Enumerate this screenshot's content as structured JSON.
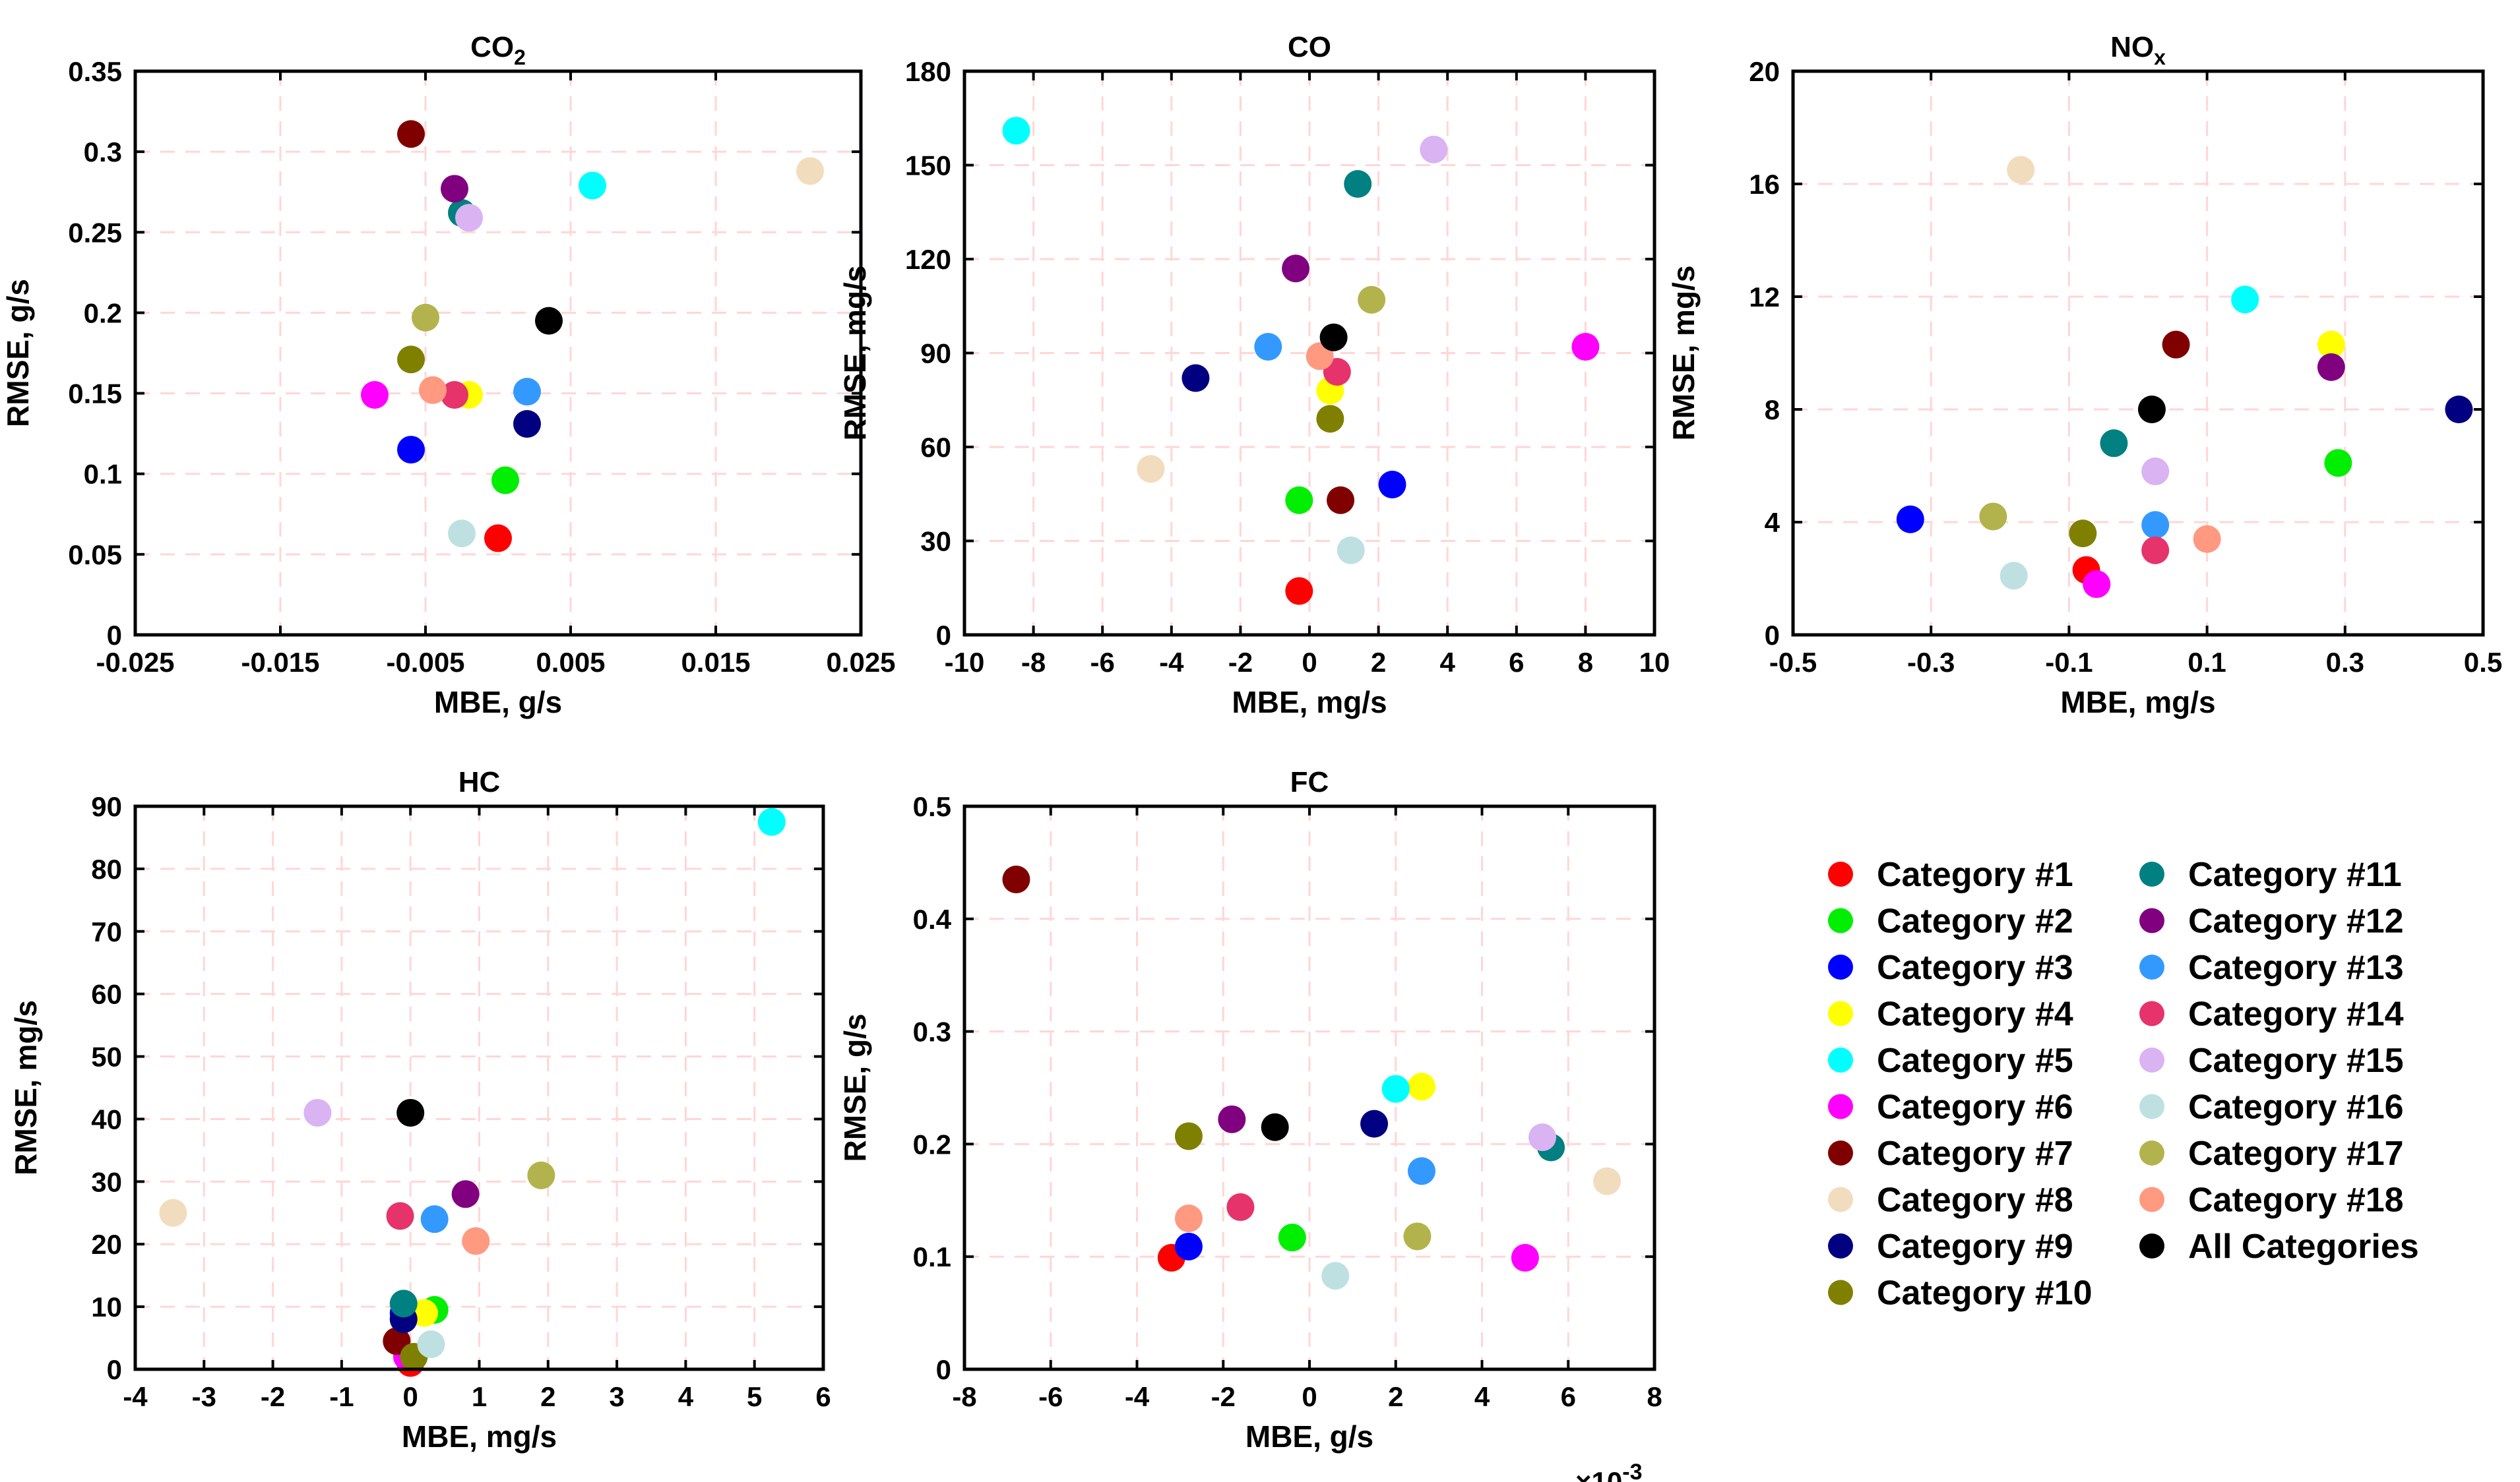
{
  "chart_data": [
    {
      "id": "co2",
      "type": "scatter",
      "title": "CO",
      "title_sub": "2",
      "xlabel": "MBE, g/s",
      "ylabel": "RMSE, g/s",
      "xlim": [
        -0.025,
        0.025
      ],
      "ylim": [
        0,
        0.35
      ],
      "xticks": [
        -0.025,
        -0.015,
        -0.005,
        0.005,
        0.015,
        0.025
      ],
      "xtick_labels": [
        "-0.025",
        "-0.015",
        "-0.005",
        "0.005",
        "0.015",
        "0.025"
      ],
      "yticks": [
        0,
        0.05,
        0.1,
        0.15,
        0.2,
        0.25,
        0.3,
        0.35
      ],
      "ytick_labels": [
        "0",
        "0.05",
        "0.1",
        "0.15",
        "0.2",
        "0.25",
        "0.3",
        "0.35"
      ],
      "points": [
        {
          "category": "Category #1",
          "x": 0.0,
          "y": 0.06
        },
        {
          "category": "Category #2",
          "x": 0.0005,
          "y": 0.096
        },
        {
          "category": "Category #3",
          "x": -0.006,
          "y": 0.115
        },
        {
          "category": "Category #4",
          "x": -0.002,
          "y": 0.149
        },
        {
          "category": "Category #5",
          "x": 0.0065,
          "y": 0.279
        },
        {
          "category": "Category #6",
          "x": -0.0085,
          "y": 0.149
        },
        {
          "category": "Category #7",
          "x": -0.006,
          "y": 0.311
        },
        {
          "category": "Category #8",
          "x": 0.0215,
          "y": 0.288
        },
        {
          "category": "Category #9",
          "x": 0.002,
          "y": 0.131
        },
        {
          "category": "Category #10",
          "x": -0.006,
          "y": 0.171
        },
        {
          "category": "Category #11",
          "x": -0.0025,
          "y": 0.262
        },
        {
          "category": "Category #12",
          "x": -0.003,
          "y": 0.277
        },
        {
          "category": "Category #13",
          "x": 0.002,
          "y": 0.151
        },
        {
          "category": "Category #14",
          "x": -0.003,
          "y": 0.149
        },
        {
          "category": "Category #15",
          "x": -0.002,
          "y": 0.259
        },
        {
          "category": "Category #16",
          "x": -0.0025,
          "y": 0.063
        },
        {
          "category": "Category #17",
          "x": -0.005,
          "y": 0.197
        },
        {
          "category": "Category #18",
          "x": -0.0045,
          "y": 0.152
        },
        {
          "category": "All Categories",
          "x": 0.0035,
          "y": 0.195
        }
      ]
    },
    {
      "id": "co",
      "type": "scatter",
      "title": "CO",
      "title_sub": "",
      "xlabel": "MBE, mg/s",
      "ylabel": "RMSE, mg/s",
      "xlim": [
        -10,
        10
      ],
      "ylim": [
        0,
        180
      ],
      "xticks": [
        -10,
        -8,
        -6,
        -4,
        -2,
        0,
        2,
        4,
        6,
        8,
        10
      ],
      "xtick_labels": [
        "-10",
        "-8",
        "-6",
        "-4",
        "-2",
        "0",
        "2",
        "4",
        "6",
        "8",
        "10"
      ],
      "yticks": [
        0,
        30,
        60,
        90,
        120,
        150,
        180
      ],
      "ytick_labels": [
        "0",
        "30",
        "60",
        "90",
        "120",
        "150",
        "180"
      ],
      "points": [
        {
          "category": "Category #1",
          "x": -0.3,
          "y": 14
        },
        {
          "category": "Category #2",
          "x": -0.3,
          "y": 43
        },
        {
          "category": "Category #3",
          "x": 2.4,
          "y": 48
        },
        {
          "category": "Category #4",
          "x": 0.6,
          "y": 78
        },
        {
          "category": "Category #5",
          "x": -8.5,
          "y": 161
        },
        {
          "category": "Category #6",
          "x": 8.0,
          "y": 92
        },
        {
          "category": "Category #7",
          "x": 0.9,
          "y": 43
        },
        {
          "category": "Category #8",
          "x": -4.6,
          "y": 53
        },
        {
          "category": "Category #9",
          "x": -3.3,
          "y": 82
        },
        {
          "category": "Category #10",
          "x": 0.6,
          "y": 69
        },
        {
          "category": "Category #11",
          "x": 1.4,
          "y": 144
        },
        {
          "category": "Category #12",
          "x": -0.4,
          "y": 117
        },
        {
          "category": "Category #13",
          "x": -1.2,
          "y": 92
        },
        {
          "category": "Category #14",
          "x": 0.8,
          "y": 84
        },
        {
          "category": "Category #15",
          "x": 3.6,
          "y": 155
        },
        {
          "category": "Category #16",
          "x": 1.2,
          "y": 27
        },
        {
          "category": "Category #17",
          "x": 1.8,
          "y": 107
        },
        {
          "category": "Category #18",
          "x": 0.3,
          "y": 89
        },
        {
          "category": "All Categories",
          "x": 0.7,
          "y": 95
        }
      ]
    },
    {
      "id": "nox",
      "type": "scatter",
      "title": "NO",
      "title_sub": "x",
      "xlabel": "MBE, mg/s",
      "ylabel": "RMSE, mg/s",
      "xlim": [
        -0.5,
        0.5
      ],
      "ylim": [
        0,
        20
      ],
      "xticks": [
        -0.5,
        -0.3,
        -0.1,
        0.1,
        0.3,
        0.5
      ],
      "xtick_labels": [
        "-0.5",
        "-0.3",
        "-0.1",
        "0.1",
        "0.3",
        "0.5"
      ],
      "yticks": [
        0,
        4,
        8,
        12,
        16,
        20
      ],
      "ytick_labels": [
        "0",
        "4",
        "8",
        "12",
        "16",
        "20"
      ],
      "points": [
        {
          "category": "Category #1",
          "x": -0.075,
          "y": 2.3
        },
        {
          "category": "Category #2",
          "x": 0.29,
          "y": 6.1
        },
        {
          "category": "Category #3",
          "x": -0.33,
          "y": 4.1
        },
        {
          "category": "Category #4",
          "x": 0.28,
          "y": 10.3
        },
        {
          "category": "Category #5",
          "x": 0.155,
          "y": 11.9
        },
        {
          "category": "Category #6",
          "x": -0.06,
          "y": 1.8
        },
        {
          "category": "Category #7",
          "x": 0.055,
          "y": 10.3
        },
        {
          "category": "Category #8",
          "x": -0.17,
          "y": 16.5
        },
        {
          "category": "Category #9",
          "x": 0.465,
          "y": 8.0
        },
        {
          "category": "Category #10",
          "x": -0.08,
          "y": 3.6
        },
        {
          "category": "Category #11",
          "x": -0.035,
          "y": 6.8
        },
        {
          "category": "Category #12",
          "x": 0.28,
          "y": 9.5
        },
        {
          "category": "Category #13",
          "x": 0.025,
          "y": 3.9
        },
        {
          "category": "Category #14",
          "x": 0.025,
          "y": 3.0
        },
        {
          "category": "Category #15",
          "x": 0.025,
          "y": 5.8
        },
        {
          "category": "Category #16",
          "x": -0.18,
          "y": 2.1
        },
        {
          "category": "Category #17",
          "x": -0.21,
          "y": 4.2
        },
        {
          "category": "Category #18",
          "x": 0.1,
          "y": 3.4
        },
        {
          "category": "All Categories",
          "x": 0.02,
          "y": 8.0
        }
      ]
    },
    {
      "id": "hc",
      "type": "scatter",
      "title": "HC",
      "title_sub": "",
      "xlabel": "MBE, mg/s",
      "ylabel": "RMSE, mg/s",
      "xlim": [
        -4,
        6
      ],
      "ylim": [
        0,
        90
      ],
      "xticks": [
        -4,
        -3,
        -2,
        -1,
        0,
        1,
        2,
        3,
        4,
        5,
        6
      ],
      "xtick_labels": [
        "-4",
        "-3",
        "-2",
        "-1",
        "0",
        "1",
        "2",
        "3",
        "4",
        "5",
        "6"
      ],
      "yticks": [
        0,
        10,
        20,
        30,
        40,
        50,
        60,
        70,
        80,
        90
      ],
      "ytick_labels": [
        "0",
        "10",
        "20",
        "30",
        "40",
        "50",
        "60",
        "70",
        "80",
        "90"
      ],
      "points": [
        {
          "category": "Category #1",
          "x": 0.0,
          "y": 1
        },
        {
          "category": "Category #2",
          "x": 0.35,
          "y": 9.5
        },
        {
          "category": "Category #3",
          "x": -0.1,
          "y": 9
        },
        {
          "category": "Category #4",
          "x": 0.2,
          "y": 9
        },
        {
          "category": "Category #5",
          "x": 5.25,
          "y": 87.5
        },
        {
          "category": "Category #6",
          "x": -0.05,
          "y": 2
        },
        {
          "category": "Category #7",
          "x": -0.2,
          "y": 4.5
        },
        {
          "category": "Category #8",
          "x": -3.45,
          "y": 25
        },
        {
          "category": "Category #9",
          "x": -0.1,
          "y": 8
        },
        {
          "category": "Category #10",
          "x": 0.05,
          "y": 2
        },
        {
          "category": "Category #11",
          "x": -0.1,
          "y": 10.5
        },
        {
          "category": "Category #12",
          "x": 0.8,
          "y": 28
        },
        {
          "category": "Category #13",
          "x": 0.35,
          "y": 24
        },
        {
          "category": "Category #14",
          "x": -0.15,
          "y": 24.5
        },
        {
          "category": "Category #15",
          "x": -1.35,
          "y": 41
        },
        {
          "category": "Category #16",
          "x": 0.3,
          "y": 4
        },
        {
          "category": "Category #17",
          "x": 1.9,
          "y": 31
        },
        {
          "category": "Category #18",
          "x": 0.95,
          "y": 20.5
        },
        {
          "category": "All Categories",
          "x": 0.0,
          "y": 41
        }
      ]
    },
    {
      "id": "fc",
      "type": "scatter",
      "title": "FC",
      "title_sub": "",
      "xlabel": "MBE, g/s",
      "ylabel": "RMSE, g/s",
      "xlim": [
        -8,
        8
      ],
      "ylim": [
        0,
        0.5
      ],
      "x_multiplier": "×10",
      "x_multiplier_exp": "-3",
      "xticks": [
        -8,
        -6,
        -4,
        -2,
        0,
        2,
        4,
        6,
        8
      ],
      "xtick_labels": [
        "-8",
        "-6",
        "-4",
        "-2",
        "0",
        "2",
        "4",
        "6",
        "8"
      ],
      "yticks": [
        0,
        0.1,
        0.2,
        0.3,
        0.4,
        0.5
      ],
      "ytick_labels": [
        "0",
        "0.1",
        "0.2",
        "0.3",
        "0.4",
        "0.5"
      ],
      "points": [
        {
          "category": "Category #1",
          "x": -3.2,
          "y": 0.099
        },
        {
          "category": "Category #2",
          "x": -0.4,
          "y": 0.117
        },
        {
          "category": "Category #3",
          "x": -2.8,
          "y": 0.109
        },
        {
          "category": "Category #4",
          "x": 2.6,
          "y": 0.251
        },
        {
          "category": "Category #5",
          "x": 2.0,
          "y": 0.249
        },
        {
          "category": "Category #6",
          "x": 5.0,
          "y": 0.099
        },
        {
          "category": "Category #7",
          "x": -6.8,
          "y": 0.435
        },
        {
          "category": "Category #8",
          "x": 6.9,
          "y": 0.167
        },
        {
          "category": "Category #9",
          "x": 1.5,
          "y": 0.218
        },
        {
          "category": "Category #10",
          "x": -2.8,
          "y": 0.207
        },
        {
          "category": "Category #11",
          "x": 5.6,
          "y": 0.197
        },
        {
          "category": "Category #12",
          "x": -1.8,
          "y": 0.222
        },
        {
          "category": "Category #13",
          "x": 2.6,
          "y": 0.176
        },
        {
          "category": "Category #14",
          "x": -1.6,
          "y": 0.144
        },
        {
          "category": "Category #15",
          "x": 5.4,
          "y": 0.206
        },
        {
          "category": "Category #16",
          "x": 0.6,
          "y": 0.083
        },
        {
          "category": "Category #17",
          "x": 2.5,
          "y": 0.118
        },
        {
          "category": "Category #18",
          "x": -2.8,
          "y": 0.134
        },
        {
          "category": "All Categories",
          "x": -0.8,
          "y": 0.215
        }
      ]
    }
  ],
  "legend": [
    {
      "label": "Category #1",
      "color": "#ff0000"
    },
    {
      "label": "Category #2",
      "color": "#00ee00"
    },
    {
      "label": "Category #3",
      "color": "#0000ff"
    },
    {
      "label": "Category #4",
      "color": "#ffff00"
    },
    {
      "label": "Category #5",
      "color": "#00ffff"
    },
    {
      "label": "Category #6",
      "color": "#ff00ff"
    },
    {
      "label": "Category #7",
      "color": "#800000"
    },
    {
      "label": "Category #8",
      "color": "#f2dcbe"
    },
    {
      "label": "Category #9",
      "color": "#000080"
    },
    {
      "label": "Category #10",
      "color": "#808000"
    },
    {
      "label": "Category #11",
      "color": "#008080"
    },
    {
      "label": "Category #12",
      "color": "#800080"
    },
    {
      "label": "Category #13",
      "color": "#3399ff"
    },
    {
      "label": "Category #14",
      "color": "#e6336b"
    },
    {
      "label": "Category #15",
      "color": "#d9b3f2"
    },
    {
      "label": "Category #16",
      "color": "#bfe0e0"
    },
    {
      "label": "Category #17",
      "color": "#b3b34d"
    },
    {
      "label": "Category #18",
      "color": "#ff9980"
    },
    {
      "label": "All Categories",
      "color": "#000000"
    }
  ]
}
